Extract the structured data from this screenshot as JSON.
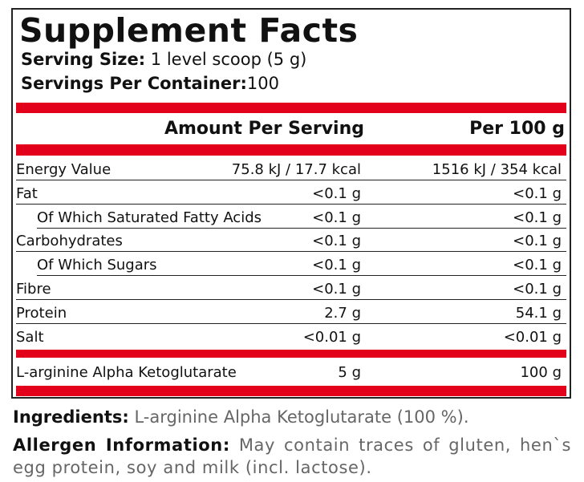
{
  "header": {
    "title": "Supplement Facts",
    "serving_size_label": "Serving Size:",
    "serving_size": "1 level scoop (5 g)",
    "servings_label": "Servings Per Container:",
    "servings": "100"
  },
  "table": {
    "columns": [
      "Amount Per Serving",
      "Per 100 g"
    ],
    "sections": [
      {
        "rows": [
          {
            "name": "Energy Value",
            "per_serving": "75.8 kJ / 17.7 kcal",
            "per_100g": "1516 kJ / 354 kcal"
          },
          {
            "name": "Fat",
            "per_serving": "<0.1 g",
            "per_100g": "<0.1 g"
          },
          {
            "name": "Of Which Saturated Fatty Acids",
            "per_serving": "<0.1 g",
            "per_100g": "<0.1 g",
            "sub": true
          },
          {
            "name": "Carbohydrates",
            "per_serving": "<0.1 g",
            "per_100g": "<0.1 g"
          },
          {
            "name": "Of Which Sugars",
            "per_serving": "<0.1 g",
            "per_100g": "<0.1 g",
            "sub": true
          },
          {
            "name": "Fibre",
            "per_serving": "<0.1 g",
            "per_100g": "<0.1 g"
          },
          {
            "name": "Protein",
            "per_serving": "2.7 g",
            "per_100g": "54.1 g"
          },
          {
            "name": "Salt",
            "per_serving": "<0.01 g",
            "per_100g": "<0.01 g"
          }
        ]
      },
      {
        "rows": [
          {
            "name": "L-arginine Alpha Ketoglutarate",
            "per_serving": "5 g",
            "per_100g": "100 g"
          }
        ]
      }
    ]
  },
  "ingredients": {
    "label": "Ingredients:",
    "text": "L-arginine Alpha Ketoglutarate (100 %)."
  },
  "allergen": {
    "label": "Allergen Information:",
    "text": "May contain traces of gluten, hen`s egg protein, soy and milk (incl. lactose)."
  }
}
